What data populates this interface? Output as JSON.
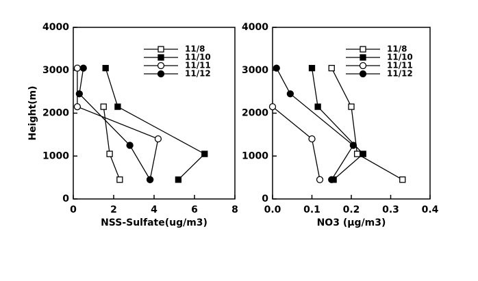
{
  "chart_data": [
    {
      "type": "line",
      "xlabel": "NSS-Sulfate(ug/m3)",
      "ylabel": "Height(m)",
      "xlim": [
        0,
        8
      ],
      "xticks": [
        0,
        2,
        4,
        6,
        8
      ],
      "ylim": [
        0,
        4000
      ],
      "yticks": [
        0,
        1000,
        2000,
        3000,
        4000
      ],
      "series": [
        {
          "name": "11/8",
          "color": "#000000",
          "marker": "open-square",
          "x": [
            1.5,
            1.8,
            2.3
          ],
          "y": [
            2150,
            1050,
            450
          ]
        },
        {
          "name": "11/10",
          "color": "#000000",
          "marker": "filled-square",
          "x": [
            1.6,
            2.2,
            6.5,
            5.2
          ],
          "y": [
            3050,
            2150,
            1050,
            450
          ]
        },
        {
          "name": "11/11",
          "color": "#000000",
          "marker": "open-circle",
          "x": [
            0.2,
            0.2,
            4.2,
            3.8
          ],
          "y": [
            3050,
            2150,
            1400,
            450
          ]
        },
        {
          "name": "11/12",
          "color": "#000000",
          "marker": "filled-circle",
          "x": [
            0.5,
            0.3,
            2.8,
            3.8
          ],
          "y": [
            3050,
            2450,
            1250,
            450
          ]
        }
      ]
    },
    {
      "type": "line",
      "xlabel": "NO3 (μg/m3)",
      "xlim": [
        0,
        0.4
      ],
      "xticks": [
        {
          "value": 0,
          "label": "0.0"
        },
        0.1,
        0.2,
        0.3,
        0.4
      ],
      "ylim": [
        0,
        4000
      ],
      "yticks": [
        0,
        1000,
        2000,
        3000,
        4000
      ],
      "series": [
        {
          "name": "11/8",
          "color": "#000000",
          "marker": "open-square",
          "x": [
            0.15,
            0.2,
            0.215,
            0.33
          ],
          "y": [
            3050,
            2150,
            1050,
            450
          ]
        },
        {
          "name": "11/10",
          "color": "#000000",
          "marker": "filled-square",
          "x": [
            0.1,
            0.115,
            0.23,
            0.155
          ],
          "y": [
            3050,
            2150,
            1050,
            450
          ]
        },
        {
          "name": "11/11",
          "color": "#000000",
          "marker": "open-circle",
          "x": [
            0.0,
            0.1,
            0.12
          ],
          "y": [
            2150,
            1400,
            450
          ]
        },
        {
          "name": "11/12",
          "color": "#000000",
          "marker": "filled-circle",
          "x": [
            0.01,
            0.045,
            0.205,
            0.15
          ],
          "y": [
            3050,
            2450,
            1250,
            450
          ]
        }
      ]
    }
  ]
}
